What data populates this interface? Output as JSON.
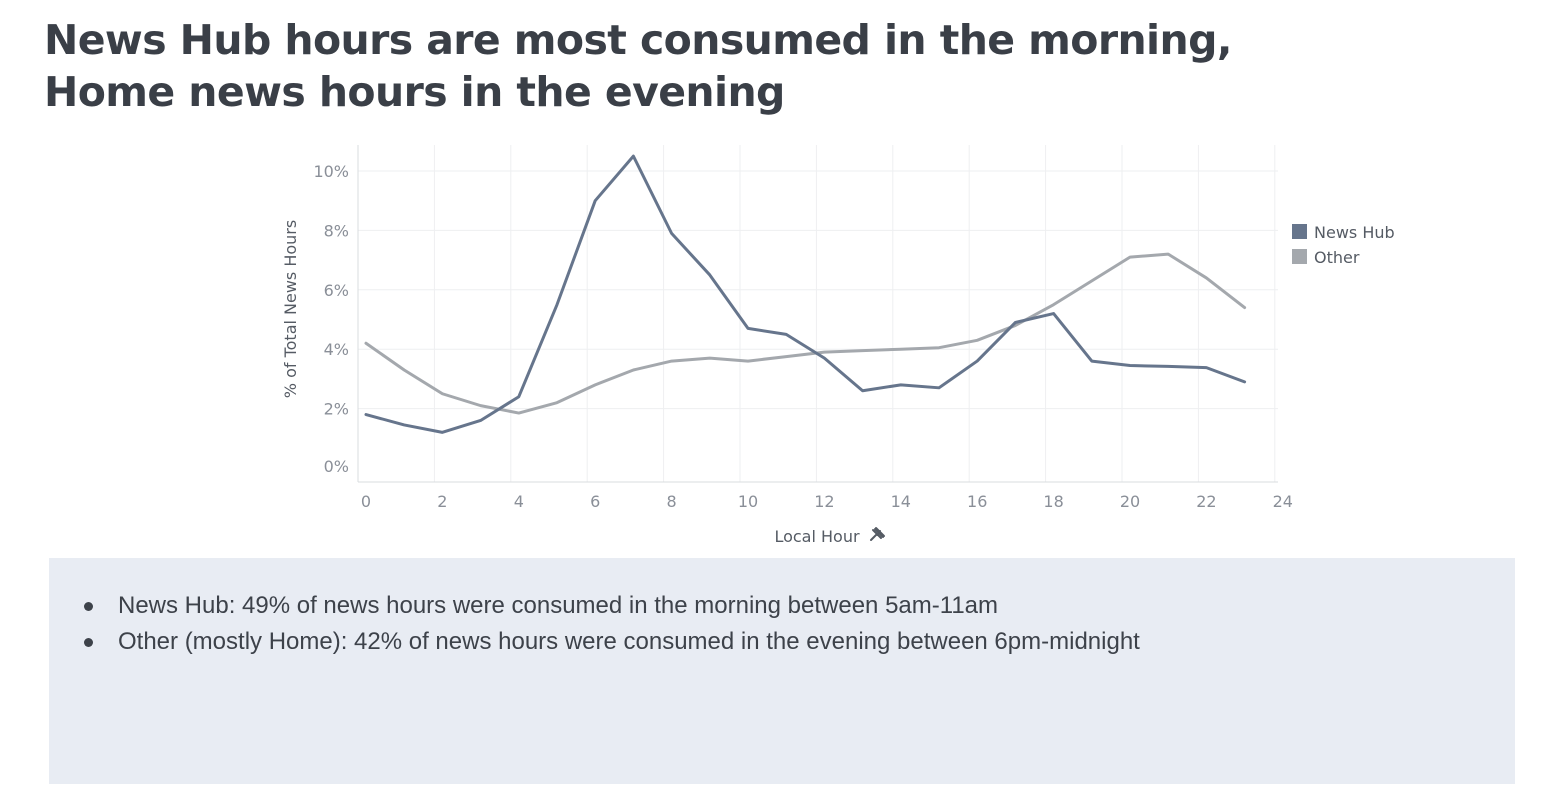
{
  "headline": {
    "line1": "News Hub hours are most consumed in the morning,",
    "line2": "Home news hours in the evening"
  },
  "colors": {
    "news_hub": "#66758c",
    "other": "#a4a8ad",
    "notes_background": "#e8ecf3"
  },
  "chart_data": {
    "type": "line",
    "title": "",
    "xlabel": "Local Hour",
    "xlabel_icon": "pin-icon",
    "ylabel": "% of Total News Hours",
    "xlim": [
      0,
      24
    ],
    "ylim": [
      0,
      10.5
    ],
    "xticks": [
      0,
      2,
      4,
      6,
      8,
      10,
      12,
      14,
      16,
      18,
      20,
      22,
      24
    ],
    "yticks": [
      {
        "value": 0,
        "label": "0%"
      },
      {
        "value": 2,
        "label": "2%"
      },
      {
        "value": 4,
        "label": "4%"
      },
      {
        "value": 6,
        "label": "6%"
      },
      {
        "value": 8,
        "label": "8%"
      },
      {
        "value": 10,
        "label": "10%"
      }
    ],
    "grid": true,
    "legend_position": "right",
    "x": [
      0,
      1,
      2,
      3,
      4,
      5,
      6,
      7,
      8,
      9,
      10,
      11,
      12,
      13,
      14,
      15,
      16,
      17,
      18,
      19,
      20,
      21,
      22,
      23
    ],
    "series": [
      {
        "name": "News Hub",
        "color": "#66758c",
        "values": [
          1.8,
          1.45,
          1.2,
          1.6,
          2.4,
          5.5,
          9.0,
          10.5,
          7.9,
          6.5,
          4.7,
          4.5,
          3.7,
          2.6,
          2.8,
          2.7,
          3.6,
          4.9,
          5.2,
          3.6,
          3.45,
          3.42,
          3.38,
          2.9
        ]
      },
      {
        "name": "Other",
        "color": "#a4a8ad",
        "values": [
          4.2,
          3.3,
          2.5,
          2.1,
          1.85,
          2.2,
          2.8,
          3.3,
          3.6,
          3.7,
          3.6,
          3.75,
          3.9,
          3.95,
          4.0,
          4.05,
          4.3,
          4.8,
          5.5,
          6.3,
          7.1,
          7.2,
          6.4,
          5.4
        ]
      }
    ]
  },
  "notes": {
    "items": [
      "News Hub: 49% of news hours were consumed in the morning between 5am-11am",
      "Other (mostly Home): 42% of news hours were consumed in the evening between 6pm-midnight"
    ]
  }
}
